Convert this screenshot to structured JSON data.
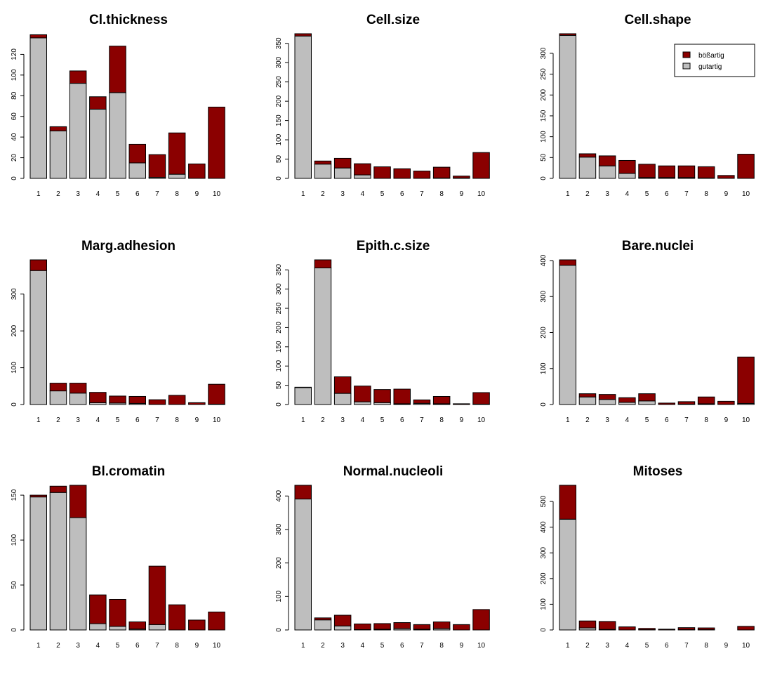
{
  "colors": {
    "benign": "#bebebe",
    "malignant": "#8b0000",
    "stroke": "#000000"
  },
  "legend": {
    "position": "top-right",
    "chart_index": 2,
    "entries": [
      {
        "label": "bößartig",
        "color": "#8b0000"
      },
      {
        "label": "gutartig",
        "color": "#bebebe"
      }
    ]
  },
  "chart_data": [
    {
      "type": "bar",
      "stacked": true,
      "title": "Cl.thickness",
      "categories": [
        "1",
        "2",
        "3",
        "4",
        "5",
        "6",
        "7",
        "8",
        "9",
        "10"
      ],
      "yticks": [
        0,
        20,
        40,
        60,
        80,
        100,
        120
      ],
      "ylim": [
        0,
        140
      ],
      "series": [
        {
          "name": "gutartig",
          "values": [
            136,
            46,
            92,
            67,
            83,
            15,
            1,
            4,
            0,
            0
          ]
        },
        {
          "name": "bößartig",
          "values": [
            3,
            4,
            12,
            12,
            45,
            18,
            22,
            40,
            14,
            69
          ]
        }
      ]
    },
    {
      "type": "bar",
      "stacked": true,
      "title": "Cell.size",
      "categories": [
        "1",
        "2",
        "3",
        "4",
        "5",
        "6",
        "7",
        "8",
        "9",
        "10"
      ],
      "yticks": [
        0,
        50,
        100,
        150,
        200,
        250,
        300,
        350
      ],
      "ylim": [
        0,
        375
      ],
      "series": [
        {
          "name": "gutartig",
          "values": [
            369,
            37,
            27,
            9,
            0,
            0,
            0,
            1,
            1,
            0
          ]
        },
        {
          "name": "bößartig",
          "values": [
            6,
            8,
            25,
            29,
            30,
            25,
            19,
            28,
            5,
            67
          ]
        }
      ]
    },
    {
      "type": "bar",
      "stacked": true,
      "title": "Cell.shape",
      "categories": [
        "1",
        "2",
        "3",
        "4",
        "5",
        "6",
        "7",
        "8",
        "9",
        "10"
      ],
      "yticks": [
        0,
        50,
        100,
        150,
        200,
        250,
        300
      ],
      "ylim": [
        0,
        347
      ],
      "series": [
        {
          "name": "gutartig",
          "values": [
            343,
            51,
            30,
            12,
            2,
            2,
            2,
            1,
            0,
            0
          ]
        },
        {
          "name": "bößartig",
          "values": [
            4,
            8,
            24,
            31,
            32,
            28,
            28,
            27,
            7,
            58
          ]
        }
      ]
    },
    {
      "type": "bar",
      "stacked": true,
      "title": "Marg.adhesion",
      "categories": [
        "1",
        "2",
        "3",
        "4",
        "5",
        "6",
        "7",
        "8",
        "9",
        "10"
      ],
      "yticks": [
        0,
        100,
        200,
        300
      ],
      "ylim": [
        0,
        393
      ],
      "series": [
        {
          "name": "gutartig",
          "values": [
            364,
            37,
            31,
            5,
            4,
            3,
            0,
            0,
            0,
            1
          ]
        },
        {
          "name": "bößartig",
          "values": [
            29,
            21,
            27,
            28,
            19,
            19,
            13,
            25,
            5,
            54
          ]
        }
      ]
    },
    {
      "type": "bar",
      "stacked": true,
      "title": "Epith.c.size",
      "categories": [
        "1",
        "2",
        "3",
        "4",
        "5",
        "6",
        "7",
        "8",
        "9",
        "10"
      ],
      "yticks": [
        0,
        50,
        100,
        150,
        200,
        250,
        300,
        350
      ],
      "ylim": [
        0,
        376
      ],
      "series": [
        {
          "name": "gutartig",
          "values": [
            44,
            355,
            29,
            7,
            5,
            2,
            3,
            2,
            0,
            1
          ]
        },
        {
          "name": "bößartig",
          "values": [
            1,
            21,
            43,
            41,
            34,
            38,
            9,
            19,
            2,
            30
          ]
        }
      ]
    },
    {
      "type": "bar",
      "stacked": true,
      "title": "Bare.nuclei",
      "categories": [
        "1",
        "2",
        "3",
        "4",
        "5",
        "6",
        "7",
        "8",
        "9",
        "10"
      ],
      "yticks": [
        0,
        100,
        200,
        300,
        400
      ],
      "ylim": [
        0,
        402
      ],
      "series": [
        {
          "name": "gutartig",
          "values": [
            387,
            21,
            14,
            6,
            10,
            0,
            1,
            2,
            0,
            3
          ]
        },
        {
          "name": "bößartig",
          "values": [
            15,
            9,
            14,
            13,
            20,
            4,
            7,
            19,
            9,
            129
          ]
        }
      ]
    },
    {
      "type": "bar",
      "stacked": true,
      "title": "Bl.cromatin",
      "categories": [
        "1",
        "2",
        "3",
        "4",
        "5",
        "6",
        "7",
        "8",
        "9",
        "10"
      ],
      "yticks": [
        0,
        50,
        100,
        150
      ],
      "ylim": [
        0,
        161
      ],
      "series": [
        {
          "name": "gutartig",
          "values": [
            148,
            153,
            125,
            7,
            4,
            1,
            6,
            0,
            0,
            0
          ]
        },
        {
          "name": "bößartig",
          "values": [
            2,
            7,
            36,
            32,
            30,
            8,
            65,
            28,
            11,
            20
          ]
        }
      ]
    },
    {
      "type": "bar",
      "stacked": true,
      "title": "Normal.nucleoli",
      "categories": [
        "1",
        "2",
        "3",
        "4",
        "5",
        "6",
        "7",
        "8",
        "9",
        "10"
      ],
      "yticks": [
        0,
        100,
        200,
        300,
        400
      ],
      "ylim": [
        0,
        432
      ],
      "series": [
        {
          "name": "gutartig",
          "values": [
            391,
            30,
            12,
            1,
            2,
            4,
            2,
            4,
            0,
            0
          ]
        },
        {
          "name": "bößartig",
          "values": [
            41,
            6,
            32,
            17,
            17,
            18,
            14,
            20,
            16,
            61
          ]
        }
      ]
    },
    {
      "type": "bar",
      "stacked": true,
      "title": "Mitoses",
      "categories": [
        "1",
        "2",
        "3",
        "4",
        "5",
        "6",
        "7",
        "8",
        "9",
        "10"
      ],
      "yticks": [
        0,
        100,
        200,
        300,
        400,
        500
      ],
      "ylim": [
        0,
        563
      ],
      "series": [
        {
          "name": "gutartig",
          "values": [
            431,
            8,
            2,
            0,
            1,
            0,
            1,
            1,
            0,
            0
          ]
        },
        {
          "name": "bößartig",
          "values": [
            132,
            27,
            31,
            12,
            5,
            3,
            8,
            7,
            0,
            14
          ]
        }
      ]
    }
  ]
}
